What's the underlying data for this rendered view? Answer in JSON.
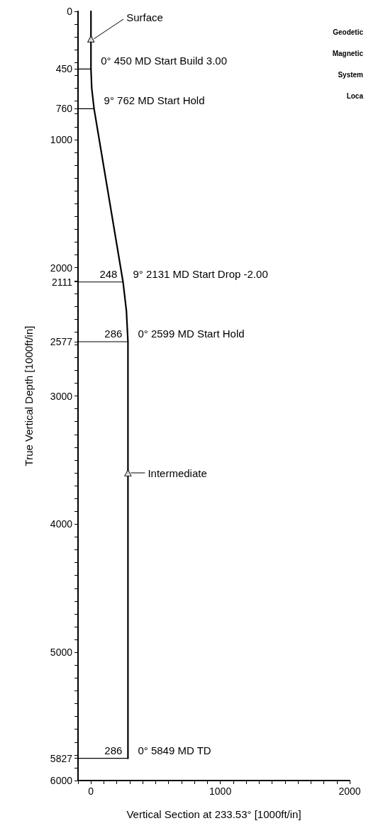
{
  "chart_data": {
    "type": "line",
    "xlabel": "Vertical Section at 233.53° [1000ft/in]",
    "ylabel": "True Vertical Depth [1000ft/in]",
    "xlim": [
      -100,
      2000
    ],
    "ylim": [
      6000,
      0
    ],
    "xticks": [
      {
        "value": -100,
        "label": null
      },
      0,
      {
        "value": 100,
        "label": null
      },
      {
        "value": 200,
        "label": null
      },
      {
        "value": 300,
        "label": null
      },
      {
        "value": 400,
        "label": null
      },
      {
        "value": 500,
        "label": null
      },
      {
        "value": 600,
        "label": null
      },
      {
        "value": 700,
        "label": null
      },
      {
        "value": 800,
        "label": null
      },
      {
        "value": 900,
        "label": null
      },
      1000,
      {
        "value": 1100,
        "label": null
      },
      {
        "value": 1200,
        "label": null
      },
      {
        "value": 1300,
        "label": null
      },
      {
        "value": 1400,
        "label": null
      },
      {
        "value": 1500,
        "label": null
      },
      {
        "value": 1600,
        "label": null
      },
      {
        "value": 1700,
        "label": null
      },
      {
        "value": 1800,
        "label": null
      },
      {
        "value": 1900,
        "label": null
      },
      2000
    ],
    "yticks": [
      0,
      {
        "value": 100,
        "label": null
      },
      {
        "value": 200,
        "label": null
      },
      {
        "value": 300,
        "label": null
      },
      {
        "value": 400,
        "label": null
      },
      450,
      {
        "value": 500,
        "label": null
      },
      {
        "value": 600,
        "label": null
      },
      {
        "value": 700,
        "label": null
      },
      760,
      {
        "value": 800,
        "label": null
      },
      {
        "value": 900,
        "label": null
      },
      1000,
      {
        "value": 1100,
        "label": null
      },
      {
        "value": 1200,
        "label": null
      },
      {
        "value": 1300,
        "label": null
      },
      {
        "value": 1400,
        "label": null
      },
      {
        "value": 1500,
        "label": null
      },
      {
        "value": 1600,
        "label": null
      },
      {
        "value": 1700,
        "label": null
      },
      {
        "value": 1800,
        "label": null
      },
      {
        "value": 1900,
        "label": null
      },
      2000,
      2111,
      {
        "value": 2100,
        "label": null
      },
      {
        "value": 2200,
        "label": null
      },
      {
        "value": 2300,
        "label": null
      },
      {
        "value": 2400,
        "label": null
      },
      {
        "value": 2500,
        "label": null
      },
      2577,
      {
        "value": 2600,
        "label": null
      },
      {
        "value": 2700,
        "label": null
      },
      {
        "value": 2800,
        "label": null
      },
      {
        "value": 2900,
        "label": null
      },
      3000,
      {
        "value": 3100,
        "label": null
      },
      {
        "value": 3200,
        "label": null
      },
      {
        "value": 3300,
        "label": null
      },
      {
        "value": 3400,
        "label": null
      },
      {
        "value": 3500,
        "label": null
      },
      {
        "value": 3600,
        "label": null
      },
      {
        "value": 3700,
        "label": null
      },
      {
        "value": 3800,
        "label": null
      },
      {
        "value": 3900,
        "label": null
      },
      4000,
      {
        "value": 4100,
        "label": null
      },
      {
        "value": 4200,
        "label": null
      },
      {
        "value": 4300,
        "label": null
      },
      {
        "value": 4400,
        "label": null
      },
      {
        "value": 4500,
        "label": null
      },
      {
        "value": 4600,
        "label": null
      },
      {
        "value": 4700,
        "label": null
      },
      {
        "value": 4800,
        "label": null
      },
      {
        "value": 4900,
        "label": null
      },
      5000,
      {
        "value": 5100,
        "label": null
      },
      {
        "value": 5200,
        "label": null
      },
      {
        "value": 5300,
        "label": null
      },
      {
        "value": 5400,
        "label": null
      },
      {
        "value": 5500,
        "label": null
      },
      {
        "value": 5600,
        "label": null
      },
      {
        "value": 5700,
        "label": null
      },
      {
        "value": 5800,
        "label": null
      },
      5827,
      {
        "value": 5900,
        "label": null
      },
      6000
    ],
    "line_style": "solid",
    "series": [
      {
        "color": "#000000",
        "x": [
          0,
          0,
          6,
          24,
          248,
          274,
          286,
          286
        ],
        "values": [
          0,
          450,
          600,
          760,
          2111,
          2336,
          2577,
          5827
        ]
      },
      {
        "color": "#000000",
        "x": [
          -100,
          0
        ],
        "values": [
          450,
          450
        ]
      },
      {
        "color": "#000000",
        "x": [
          -100,
          24
        ],
        "values": [
          760,
          760
        ]
      },
      {
        "color": "#000000",
        "x": [
          -100,
          248
        ],
        "values": [
          2111,
          2111
        ]
      },
      {
        "color": "#000000",
        "x": [
          -100,
          286
        ],
        "values": [
          2577,
          2577
        ]
      },
      {
        "color": "#000000",
        "x": [
          -100,
          286
        ],
        "values": [
          5827,
          5827
        ]
      },
      {
        "type": "scatter",
        "marker": "triangle",
        "color": "#000000",
        "x": [
          0,
          286
        ],
        "values": [
          215,
          3600
        ]
      }
    ],
    "annotations": [
      {
        "text": "Surface",
        "x": 0,
        "y": 215
      },
      {
        "text": "0° 450 MD Start Build 3.00",
        "x": 0,
        "y": 450
      },
      {
        "text": "9° 762 MD Start Hold",
        "x": 24,
        "y": 760
      },
      {
        "text": "248",
        "x": 248,
        "y": 2111
      },
      {
        "text": "9° 2131 MD Start Drop -2.00",
        "x": 248,
        "y": 2111
      },
      {
        "text": "286",
        "x": 286,
        "y": 2577
      },
      {
        "text": "0° 2599 MD Start Hold",
        "x": 286,
        "y": 2577
      },
      {
        "text": "Intermediate",
        "x": 286,
        "y": 3600
      },
      {
        "text": "286",
        "x": 286,
        "y": 5827
      },
      {
        "text": "0° 5849 MD TD",
        "x": 286,
        "y": 5827
      },
      "Geodetic",
      "Magnetic",
      "System",
      "Loca"
    ]
  }
}
